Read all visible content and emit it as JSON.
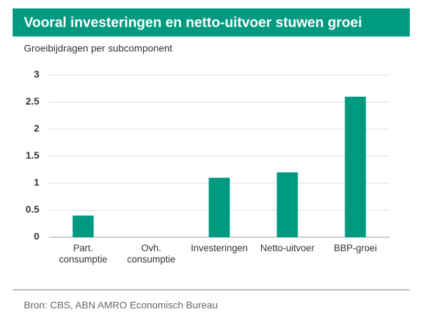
{
  "chart_data": {
    "type": "bar",
    "title": "Vooral investeringen en netto-uitvoer stuwen groei",
    "subtitle": "Groeibijdragen per subcomponent",
    "categories": [
      "Part. consumptie",
      "Ovh. consumptie",
      "Investeringen",
      "Netto-uitvoer",
      "BBP-groei"
    ],
    "values": [
      0.4,
      0,
      1.1,
      1.2,
      2.6
    ],
    "color": "#009a80",
    "ylim": [
      0,
      3
    ],
    "yticks": [
      0,
      0.5,
      1,
      1.5,
      2,
      2.5,
      3
    ],
    "grid": true,
    "source": "Bron: CBS, ABN AMRO Economisch Bureau"
  }
}
